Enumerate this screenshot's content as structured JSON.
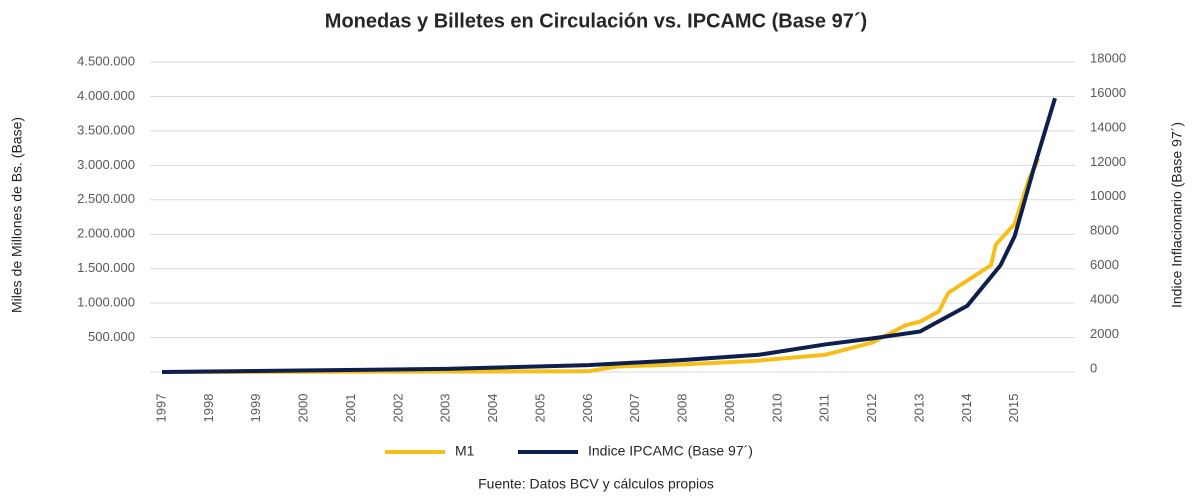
{
  "chart_data": {
    "type": "line",
    "title": "Monedas y Billetes en Circulación vs. IPCAMC (Base 97´)",
    "ylabel": "Miles de Millones de Bs. (Base)",
    "y2label": "Indice Inflacionario (Base 97´)",
    "source": "Fuente: Datos BCV y cálculos propios",
    "xlim": [
      1997,
      2015.85
    ],
    "xticks": [
      1997,
      1998,
      1999,
      2000,
      2001,
      2002,
      2003,
      2004,
      2005,
      2006,
      2007,
      2008,
      2009,
      2010,
      2011,
      2012,
      2013,
      2014,
      2015
    ],
    "ylim": [
      0,
      4500000
    ],
    "yticks": [
      {
        "value": 500000,
        "label": "500.000"
      },
      {
        "value": 1000000,
        "label": "1.000.000"
      },
      {
        "value": 1500000,
        "label": "1.500.000"
      },
      {
        "value": 2000000,
        "label": "2.000.000"
      },
      {
        "value": 2500000,
        "label": "2.500.000"
      },
      {
        "value": 3000000,
        "label": "3.000.000"
      },
      {
        "value": 3500000,
        "label": "3.500.000"
      },
      {
        "value": 4000000,
        "label": "4.000.000"
      },
      {
        "value": 4500000,
        "label": "4.500.000"
      }
    ],
    "y2lim": [
      0,
      18000
    ],
    "y2ticks": [
      0,
      2000,
      4000,
      6000,
      8000,
      10000,
      12000,
      14000,
      16000,
      18000
    ],
    "grid": true,
    "series": [
      {
        "name": "M1",
        "color": "#f5be19",
        "axis": "y",
        "x": [
          1997,
          2006,
          2006.6,
          2008,
          2009.5,
          2011,
          2012,
          2012.7,
          2013,
          2013.4,
          2013.6,
          2014.5,
          2014.6,
          2015,
          2015.3,
          2015.5
        ],
        "values": [
          0,
          10000,
          80000,
          110000,
          160000,
          250000,
          430000,
          680000,
          730000,
          880000,
          1150000,
          1550000,
          1850000,
          2150000,
          2800000,
          3100000
        ]
      },
      {
        "name": "Indice IPCAMC (Base 97´)",
        "color": "#0d1f4f",
        "axis": "y2",
        "x": [
          1997,
          2003,
          2006,
          2008,
          2009.6,
          2011,
          2012,
          2013,
          2014,
          2014.7,
          2015,
          2015.4,
          2015.85
        ],
        "values": [
          0,
          180,
          400,
          700,
          1000,
          1600,
          1950,
          2350,
          3850,
          6200,
          7900,
          11800,
          15900
        ]
      }
    ]
  }
}
